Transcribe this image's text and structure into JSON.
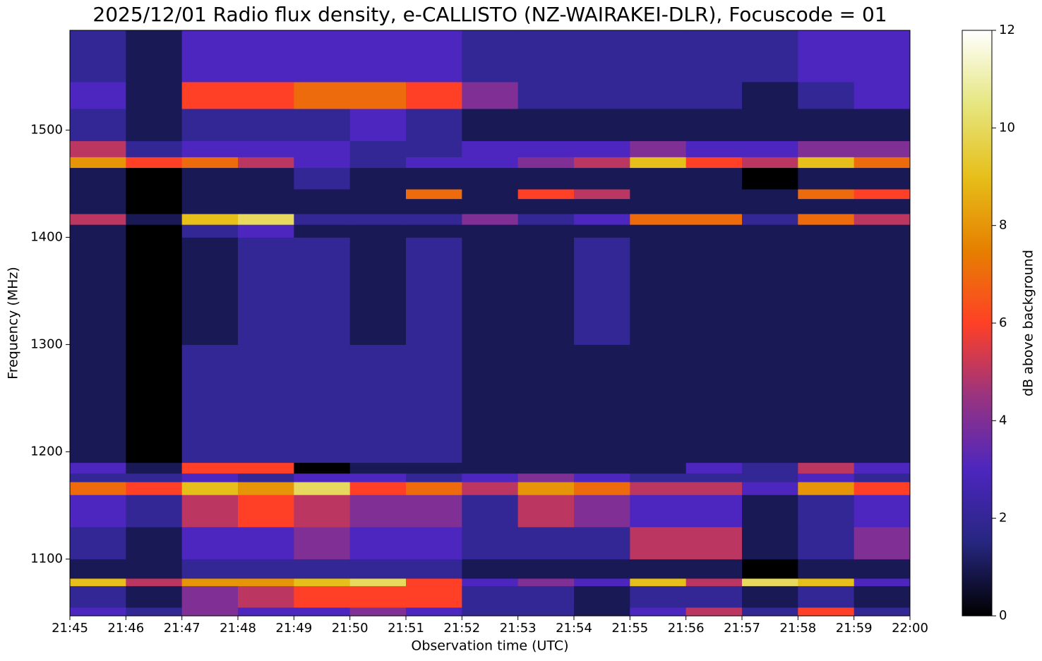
{
  "chart_data": {
    "type": "heatmap",
    "title": "2025/12/01 Radio flux density, e-CALLISTO (NZ-WAIRAKEI-DLR), Focuscode = 01",
    "xlabel": "Observation time (UTC)",
    "ylabel": "Frequency (MHz)",
    "colorbar_label": "dB above background",
    "x_bins": [
      "21:45",
      "21:46",
      "21:47",
      "21:48",
      "21:49",
      "21:50",
      "21:51",
      "21:52",
      "21:53",
      "21:54",
      "21:55",
      "21:56",
      "21:57",
      "21:58",
      "21:59",
      "22:00"
    ],
    "y_bins": [
      1047,
      1055,
      1075,
      1082,
      1100,
      1130,
      1160,
      1172,
      1180,
      1190,
      1300,
      1400,
      1412,
      1422,
      1436,
      1445,
      1465,
      1475,
      1490,
      1520,
      1545,
      1593
    ],
    "z": [
      [
        3,
        2,
        4,
        3,
        3,
        4,
        3,
        2,
        2,
        1,
        3,
        5,
        2,
        6,
        2
      ],
      [
        2,
        1,
        4,
        5,
        6,
        6,
        6,
        2,
        2,
        1,
        2,
        2,
        1,
        2,
        1
      ],
      [
        9,
        5,
        8,
        8,
        9,
        10,
        6,
        3,
        4,
        3,
        9,
        5,
        10,
        9,
        3
      ],
      [
        1,
        1,
        2,
        2,
        2,
        2,
        2,
        1,
        1,
        1,
        1,
        1,
        0,
        1,
        1
      ],
      [
        2,
        1,
        3,
        3,
        4,
        3,
        3,
        2,
        2,
        2,
        5,
        5,
        1,
        2,
        4
      ],
      [
        3,
        2,
        5,
        6,
        5,
        4,
        4,
        2,
        5,
        4,
        3,
        3,
        1,
        2,
        3
      ],
      [
        7,
        6,
        9,
        8,
        10,
        6,
        7,
        5,
        8,
        7,
        5,
        5,
        3,
        8,
        6
      ],
      [
        2,
        2,
        3,
        2,
        3,
        3,
        2,
        3,
        4,
        3,
        2,
        2,
        2,
        3,
        2
      ],
      [
        3,
        1,
        6,
        6,
        0,
        1,
        1,
        1,
        1,
        1,
        1,
        3,
        2,
        5,
        3
      ],
      [
        1,
        0,
        2,
        2,
        2,
        2,
        2,
        1,
        1,
        1,
        1,
        1,
        1,
        1,
        1
      ],
      [
        1,
        0,
        1,
        2,
        2,
        1,
        2,
        1,
        1,
        2,
        1,
        1,
        1,
        1,
        1
      ],
      [
        1,
        0,
        2,
        3,
        1,
        1,
        1,
        1,
        1,
        1,
        1,
        1,
        1,
        1,
        1
      ],
      [
        5,
        1,
        9,
        10,
        2,
        2,
        2,
        4,
        2,
        3,
        7,
        7,
        2,
        7,
        5
      ],
      [
        1,
        0,
        1,
        1,
        1,
        1,
        1,
        1,
        1,
        1,
        1,
        1,
        1,
        1,
        1
      ],
      [
        1,
        0,
        1,
        1,
        1,
        1,
        7,
        1,
        6,
        5,
        1,
        1,
        1,
        7,
        6
      ],
      [
        1,
        0,
        1,
        1,
        2,
        1,
        1,
        1,
        1,
        1,
        1,
        1,
        0,
        1,
        1
      ],
      [
        8,
        6,
        7,
        5,
        3,
        2,
        3,
        3,
        4,
        5,
        9,
        6,
        5,
        9,
        7
      ],
      [
        5,
        2,
        3,
        3,
        3,
        2,
        2,
        3,
        3,
        3,
        4,
        3,
        3,
        4,
        4
      ],
      [
        2,
        1,
        2,
        2,
        2,
        3,
        2,
        1,
        1,
        1,
        1,
        1,
        1,
        1,
        1
      ],
      [
        3,
        1,
        6,
        6,
        7,
        7,
        6,
        4,
        2,
        2,
        2,
        2,
        1,
        2,
        3
      ],
      [
        2,
        1,
        3,
        3,
        3,
        3,
        3,
        2,
        2,
        2,
        2,
        2,
        2,
        3,
        3
      ]
    ],
    "xlim": [
      "21:45",
      "22:00"
    ],
    "xticks": [
      "21:45",
      "21:46",
      "21:47",
      "21:48",
      "21:49",
      "21:50",
      "21:51",
      "21:52",
      "21:53",
      "21:54",
      "21:55",
      "21:56",
      "21:57",
      "21:58",
      "21:59",
      "22:00"
    ],
    "ylim": [
      1047,
      1593
    ],
    "yticks": [
      1100,
      1200,
      1300,
      1400,
      1500
    ],
    "clim": [
      0,
      12
    ],
    "cticks": [
      0,
      2,
      4,
      6,
      8,
      10,
      12
    ],
    "colormap": [
      "#000000",
      "#262680",
      "#4d26bf",
      "#993380",
      "#ff4026",
      "#e68000",
      "#e6bf1a",
      "#e6e680",
      "#ffffff"
    ]
  }
}
